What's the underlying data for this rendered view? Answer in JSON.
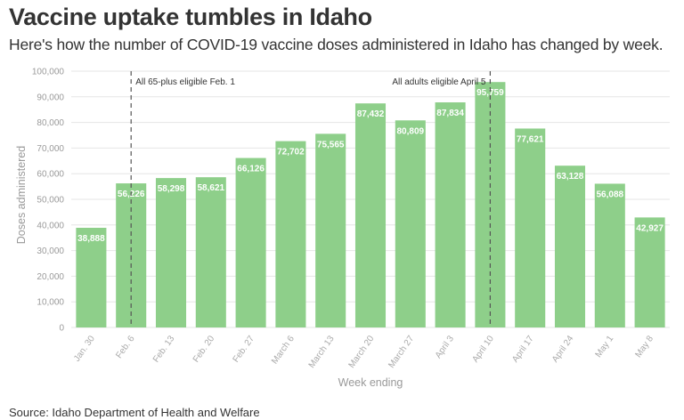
{
  "title": "Vaccine uptake tumbles in Idaho",
  "subtitle": "Here's how the number of COVID-19 vaccine doses administered in Idaho has changed by week.",
  "source": "Source: Idaho Department of Health and Welfare",
  "colors": {
    "bar": "#8ecf8a",
    "grid": "#e6e6e6",
    "annotation_line": "#555555"
  },
  "chart_data": {
    "type": "bar",
    "title": "Vaccine uptake tumbles in Idaho",
    "xlabel": "Week ending",
    "ylabel": "Doses administered",
    "ylim": [
      0,
      100000
    ],
    "yticks": [
      0,
      10000,
      20000,
      30000,
      40000,
      50000,
      60000,
      70000,
      80000,
      90000,
      100000
    ],
    "ytick_labels": [
      "0",
      "10,000",
      "20,000",
      "30,000",
      "40,000",
      "50,000",
      "60,000",
      "70,000",
      "80,000",
      "90,000",
      "100,000"
    ],
    "categories": [
      "Jan. 30",
      "Feb. 6",
      "Feb. 13",
      "Feb. 20",
      "Feb. 27",
      "March 6",
      "March 13",
      "March 20",
      "March 27",
      "April 3",
      "April 10",
      "April 17",
      "April 24",
      "May 1",
      "May 8"
    ],
    "values": [
      38888,
      56226,
      58298,
      58621,
      66126,
      72702,
      75565,
      87432,
      80809,
      87834,
      95759,
      77621,
      63128,
      56088,
      42927
    ],
    "data_labels": [
      "38,888",
      "56,226",
      "58,298",
      "58,621",
      "66,126",
      "72,702",
      "75,565",
      "87,432",
      "80,809",
      "87,834",
      "95,759",
      "77,621",
      "63,128",
      "56,088",
      "42,927"
    ],
    "grid": true,
    "annotations": [
      {
        "text": "All 65-plus eligible Feb. 1",
        "category": "Feb. 6",
        "text_side": "right"
      },
      {
        "text": "All adults eligible April 5",
        "category": "April 10",
        "text_side": "left"
      }
    ]
  }
}
